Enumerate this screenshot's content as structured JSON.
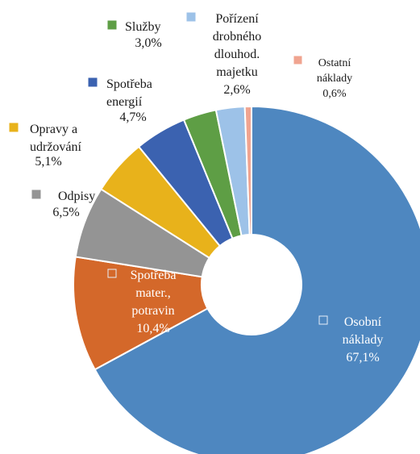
{
  "chart_data": {
    "type": "pie",
    "variant": "doughnut",
    "title": "",
    "slices": [
      {
        "name": "Osobní náklady",
        "value": 67.1,
        "label": "67,1%",
        "color": "#4E87C0"
      },
      {
        "name": "Spotřeba mater., potravin",
        "value": 10.4,
        "label": "10,4%",
        "color": "#D4682A"
      },
      {
        "name": "Odpisy",
        "value": 6.5,
        "label": "6,5%",
        "color": "#949494"
      },
      {
        "name": "Opravy a udržování",
        "value": 5.1,
        "label": "5,1%",
        "color": "#E8B21B"
      },
      {
        "name": "Spotřeba energií",
        "value": 4.7,
        "label": "4,7%",
        "color": "#3B62B0"
      },
      {
        "name": "Služby",
        "value": 3.0,
        "label": "3,0%",
        "color": "#5E9E45"
      },
      {
        "name": "Pořízení drobného dlouhod. majetku",
        "value": 2.6,
        "label": "2,6%",
        "color": "#9DC2E8"
      },
      {
        "name": "Ostatní náklady",
        "value": 0.6,
        "label": "0,6%",
        "color": "#F0A490"
      }
    ]
  }
}
